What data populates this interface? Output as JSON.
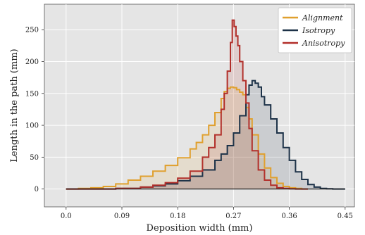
{
  "chart_data": {
    "type": "area",
    "title": "",
    "xlabel": "Deposition width (mm)",
    "ylabel": "Length in the path (mm)",
    "xlim": [
      -0.035,
      0.465
    ],
    "ylim": [
      -28,
      290
    ],
    "xticks": [
      0.0,
      0.09,
      0.18,
      0.27,
      0.36,
      0.45
    ],
    "xtick_labels": [
      "0.0",
      "0.09",
      "0.18",
      "0.27",
      "0.36",
      "0.45"
    ],
    "yticks": [
      0,
      50,
      100,
      150,
      200,
      250
    ],
    "ytick_labels": [
      "0",
      "50",
      "100",
      "150",
      "200",
      "250"
    ],
    "grid": true,
    "background": "#e5e5e5",
    "legend_position": "top-right",
    "series": [
      {
        "name": "Alignment",
        "color": "#e0a02e",
        "x": [
          0.0,
          0.02,
          0.04,
          0.06,
          0.08,
          0.1,
          0.12,
          0.14,
          0.16,
          0.18,
          0.2,
          0.21,
          0.22,
          0.23,
          0.24,
          0.25,
          0.255,
          0.26,
          0.265,
          0.27,
          0.275,
          0.28,
          0.285,
          0.29,
          0.295,
          0.3,
          0.31,
          0.32,
          0.33,
          0.34,
          0.35,
          0.36,
          0.37,
          0.38,
          0.39
        ],
        "y": [
          0,
          1,
          2,
          4,
          8,
          14,
          20,
          28,
          37,
          49,
          63,
          73,
          85,
          100,
          120,
          142,
          153,
          158,
          160,
          159,
          156,
          152,
          148,
          128,
          110,
          85,
          55,
          33,
          18,
          9,
          4,
          2,
          1,
          0,
          0
        ]
      },
      {
        "name": "Isotropy",
        "color": "#1d3248",
        "x": [
          0.0,
          0.04,
          0.08,
          0.12,
          0.14,
          0.16,
          0.18,
          0.2,
          0.22,
          0.24,
          0.25,
          0.26,
          0.27,
          0.28,
          0.29,
          0.295,
          0.3,
          0.305,
          0.31,
          0.315,
          0.32,
          0.33,
          0.34,
          0.35,
          0.36,
          0.37,
          0.38,
          0.39,
          0.4,
          0.41,
          0.42,
          0.43,
          0.44,
          0.45
        ],
        "y": [
          0,
          0,
          1,
          3,
          5,
          8,
          13,
          20,
          30,
          45,
          55,
          68,
          88,
          115,
          148,
          163,
          170,
          166,
          160,
          145,
          132,
          110,
          88,
          65,
          45,
          27,
          15,
          7,
          3,
          1,
          0.5,
          0,
          0,
          0
        ]
      },
      {
        "name": "Anisotropy",
        "color": "#b22f2a",
        "x": [
          0.0,
          0.04,
          0.08,
          0.12,
          0.14,
          0.16,
          0.18,
          0.2,
          0.22,
          0.23,
          0.24,
          0.25,
          0.255,
          0.26,
          0.265,
          0.268,
          0.271,
          0.274,
          0.277,
          0.28,
          0.285,
          0.29,
          0.295,
          0.3,
          0.31,
          0.32,
          0.33,
          0.34,
          0.35,
          0.36,
          0.37,
          0.38,
          0.39
        ],
        "y": [
          0,
          0,
          1,
          3,
          6,
          10,
          17,
          28,
          50,
          65,
          85,
          125,
          150,
          185,
          230,
          265,
          255,
          240,
          225,
          200,
          170,
          135,
          95,
          60,
          30,
          14,
          6,
          2,
          1,
          0.5,
          0,
          0,
          0
        ]
      }
    ]
  }
}
